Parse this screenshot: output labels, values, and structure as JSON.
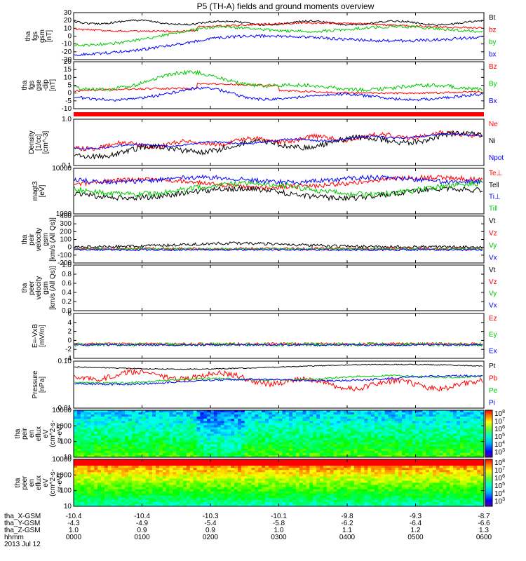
{
  "chart_data": {
    "type": "line",
    "title": "P5 (TH-A) fields and ground moments overview",
    "date": "2013 Jul 12",
    "x_ticks": [
      "0000",
      "0100",
      "0200",
      "0300",
      "0400",
      "0500",
      "0600"
    ],
    "xlim_hours": [
      0,
      6
    ],
    "ephemeris": [
      {
        "label": "tha_X-GSM",
        "values": [
          "-10.4",
          "-10.4",
          "-10.3",
          "-10.1",
          "-9.8",
          "-9.3",
          "-8.7"
        ]
      },
      {
        "label": "tha_Y-GSM",
        "values": [
          "-4.3",
          "-4.9",
          "-5.4",
          "-5.8",
          "-6.2",
          "-6.4",
          "-6.6"
        ]
      },
      {
        "label": "tha_Z-GSM",
        "values": [
          "1.0",
          "0.9",
          "0.9",
          "1.0",
          "1.1",
          "1.2",
          "1.3"
        ]
      },
      {
        "label": "hhmm",
        "values": [
          "0000",
          "0100",
          "0200",
          "0300",
          "0400",
          "0500",
          "0600"
        ]
      }
    ],
    "panels": [
      {
        "ylabel": [
          "tha",
          "fgs",
          "gsm",
          "[nT]"
        ],
        "ticks": [
          "30",
          "20",
          "10",
          "0",
          "-10",
          "-20",
          "-30"
        ],
        "series": [
          {
            "name": "Bt",
            "color": "#000000"
          },
          {
            "name": "bz",
            "color": "#ff0000"
          },
          {
            "name": "by",
            "color": "#00c800"
          },
          {
            "name": "bx",
            "color": "#0000ff"
          }
        ]
      },
      {
        "ylabel": [
          "tha",
          "fgs",
          "gse",
          "-dip",
          "[nT]"
        ],
        "ticks": [
          "20",
          "15",
          "10",
          "5",
          "0",
          "-5",
          "-10"
        ],
        "series": [
          {
            "name": "Bz",
            "color": "#ff0000"
          },
          {
            "name": "By",
            "color": "#00c800"
          },
          {
            "name": "Bx",
            "color": "#0000ff"
          }
        ]
      },
      {
        "ylabel": [
          "Density",
          "[1/cc]",
          "[cm^-3]"
        ],
        "ticks": [
          "1.0",
          "0.1"
        ],
        "series": [
          {
            "name": "Ne",
            "color": "#ff0000"
          },
          {
            "name": "Ni",
            "color": "#000000"
          },
          {
            "name": "Npot",
            "color": "#0000ff"
          }
        ]
      },
      {
        "ylabel": [
          "magt3",
          "[eV]"
        ],
        "ticks": [
          "10000",
          "1000"
        ],
        "series": [
          {
            "name": "Te⊥",
            "color": "#ff0000"
          },
          {
            "name": "Te‖",
            "color": "#000000"
          },
          {
            "name": "Ti⊥",
            "color": "#0000ff"
          },
          {
            "name": "Ti‖",
            "color": "#00c800"
          }
        ]
      },
      {
        "ylabel": [
          "tha",
          "peir",
          "velocity",
          "gsm",
          "[km/s (All Qs)]"
        ],
        "ticks": [
          "400",
          "300",
          "200",
          "100",
          "0",
          "-100",
          "-200"
        ],
        "series": [
          {
            "name": "Vt",
            "color": "#000000"
          },
          {
            "name": "Vz",
            "color": "#ff0000"
          },
          {
            "name": "Vy",
            "color": "#00c800"
          },
          {
            "name": "Vx",
            "color": "#0000ff"
          }
        ]
      },
      {
        "ylabel": [
          "tha",
          "peer",
          "velocity",
          "gsm",
          "[km/s (All Qs)]"
        ],
        "ticks": [
          "1.0",
          "0.8",
          "0.6",
          "0.4",
          "0.2",
          "0.0"
        ],
        "series": [
          {
            "name": "Vt",
            "color": "#000000"
          },
          {
            "name": "Vz",
            "color": "#ff0000"
          },
          {
            "name": "Vy",
            "color": "#00c800"
          },
          {
            "name": "Vx",
            "color": "#0000ff"
          }
        ]
      },
      {
        "ylabel": [
          "E=-VxB",
          "[mV/m]"
        ],
        "ticks": [
          "6",
          "4",
          "2",
          "0",
          "-2",
          "-4"
        ],
        "series": [
          {
            "name": "Ez",
            "color": "#ff0000"
          },
          {
            "name": "Ey",
            "color": "#00c800"
          },
          {
            "name": "Ex",
            "color": "#0000ff"
          }
        ]
      },
      {
        "ylabel": [
          "Pressure",
          "[nPa]"
        ],
        "ticks": [
          "0.10",
          "0.01"
        ],
        "series": [
          {
            "name": "Pt",
            "color": "#000000"
          },
          {
            "name": "Pb",
            "color": "#ff0000"
          },
          {
            "name": "Pe",
            "color": "#00c800"
          },
          {
            "name": "Pi",
            "color": "#0000ff"
          }
        ]
      },
      {
        "ylabel": [
          "tha",
          "peir",
          "en",
          "eflux",
          "eV",
          "(cm^2-s-",
          "sr-eV)"
        ],
        "ticks": [
          "10000",
          "1000",
          "100",
          "10"
        ],
        "colorbar": [
          "10^8",
          "10^7",
          "10^6",
          "10^5",
          "10^4",
          "10^3"
        ]
      },
      {
        "ylabel": [
          "tha",
          "peer",
          "en",
          "eflux",
          "eV",
          "(cm^2-s-",
          "sr-eV)"
        ],
        "ticks": [
          "10000",
          "1000",
          "100",
          "10"
        ],
        "colorbar": [
          "10^8",
          "10^7",
          "10^6",
          "10^5",
          "10^4",
          "10^3"
        ]
      }
    ]
  }
}
